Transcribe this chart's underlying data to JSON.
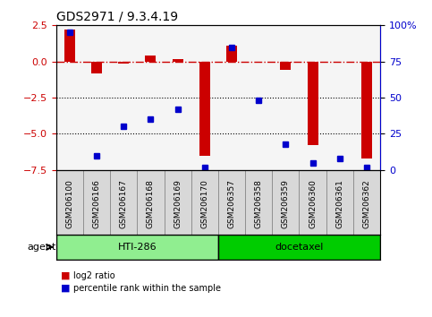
{
  "title": "GDS2971 / 9.3.4.19",
  "samples": [
    "GSM206100",
    "GSM206166",
    "GSM206167",
    "GSM206168",
    "GSM206169",
    "GSM206170",
    "GSM206357",
    "GSM206358",
    "GSM206359",
    "GSM206360",
    "GSM206361",
    "GSM206362"
  ],
  "log2_ratio": [
    2.2,
    -0.8,
    -0.15,
    0.4,
    0.15,
    -6.5,
    1.1,
    -0.05,
    -0.6,
    -5.8,
    -0.05,
    -6.7
  ],
  "percentile_rank": [
    95,
    10,
    30,
    35,
    42,
    2,
    85,
    48,
    18,
    5,
    8,
    2
  ],
  "groups": [
    {
      "label": "HTI-286",
      "start": 0,
      "end": 5,
      "color": "#90EE90"
    },
    {
      "label": "docetaxel",
      "start": 6,
      "end": 11,
      "color": "#00CC00"
    }
  ],
  "bar_color": "#CC0000",
  "dot_color": "#0000CC",
  "ylim_left": [
    -7.5,
    2.5
  ],
  "ylim_right": [
    0,
    100
  ],
  "yticks_left": [
    -7.5,
    -5.0,
    -2.5,
    0.0,
    2.5
  ],
  "yticks_right": [
    0,
    25,
    50,
    75,
    100
  ],
  "hline_y": 0.0,
  "hline_color": "#CC0000",
  "dotted_lines": [
    -2.5,
    -5.0
  ],
  "bgcolor": "#F5F5F5",
  "agent_label": "agent",
  "legend_items": [
    {
      "label": "log2 ratio",
      "color": "#CC0000"
    },
    {
      "label": "percentile rank within the sample",
      "color": "#0000CC"
    }
  ]
}
